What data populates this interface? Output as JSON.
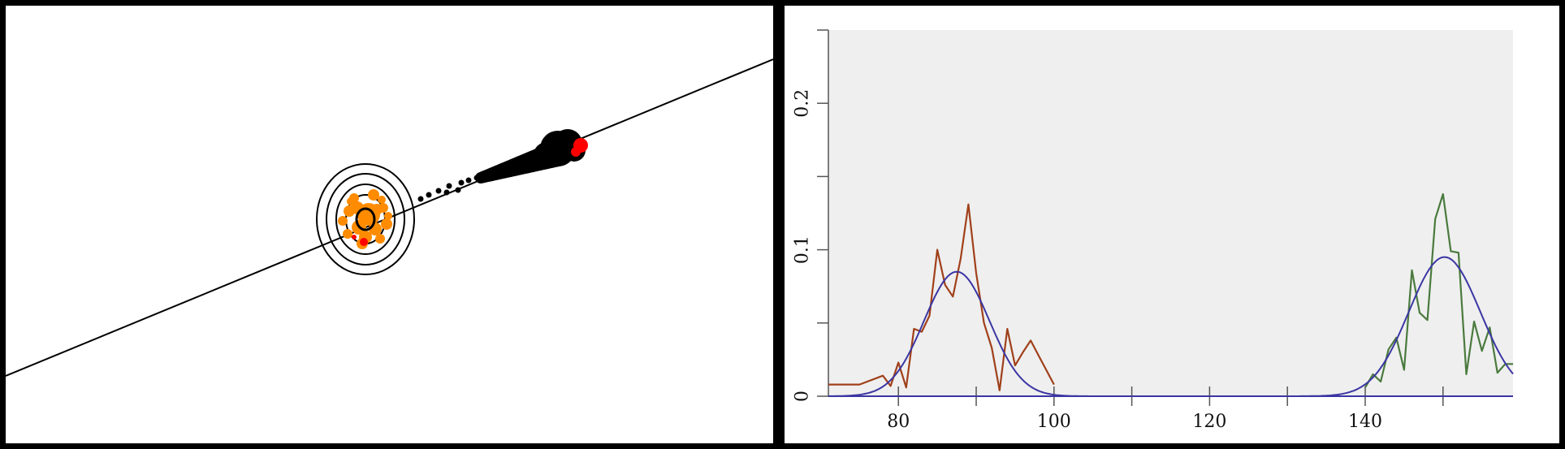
{
  "chart_data": [
    {
      "type": "scatter",
      "title": "",
      "xlabel": "",
      "ylabel": "",
      "grid": false,
      "elements": {
        "line": "black line",
        "target_circles": 4,
        "cluster_color": "#ff8c00",
        "trail_color": "#000000",
        "highlight_color": "#ff0000"
      }
    },
    {
      "type": "line",
      "title": "",
      "xlabel": "",
      "ylabel": "",
      "xlim": [
        71,
        159
      ],
      "ylim": [
        0,
        0.25
      ],
      "x_ticks": [
        80,
        100,
        120,
        140
      ],
      "x_minor_ticks": [
        90,
        110,
        130,
        150
      ],
      "y_ticks": [
        0,
        0.1,
        0.2
      ],
      "y_tick_labels": [
        "0",
        "0.1",
        "0.2"
      ],
      "y_minor_ticks": [
        0.05,
        0.15,
        0.25
      ],
      "background": "#efefef",
      "grid": false,
      "series": [
        {
          "color": "#a0401a",
          "x": [
            71,
            75,
            78,
            79,
            80,
            81,
            82,
            83,
            84,
            85,
            86,
            87,
            88,
            89,
            90,
            91,
            92,
            93,
            94,
            95,
            96,
            97,
            98,
            99,
            100
          ],
          "y": [
            0.008,
            0.008,
            0.014,
            0.007,
            0.023,
            0.006,
            0.046,
            0.044,
            0.055,
            0.1,
            0.076,
            0.068,
            0.094,
            0.131,
            0.084,
            0.05,
            0.033,
            0.004,
            0.046,
            0.021,
            0.03,
            0.038,
            0.028,
            0.018,
            0.008
          ]
        },
        {
          "color": "#4a7a3e",
          "x": [
            140,
            141,
            142,
            143,
            144,
            145,
            146,
            147,
            148,
            149,
            150,
            151,
            152,
            153,
            154,
            155,
            156,
            157,
            158,
            159
          ],
          "y": [
            0.006,
            0.015,
            0.01,
            0.032,
            0.04,
            0.018,
            0.086,
            0.057,
            0.052,
            0.121,
            0.138,
            0.099,
            0.098,
            0.015,
            0.051,
            0.031,
            0.047,
            0.016,
            0.022,
            0.022
          ]
        },
        {
          "color": "#3b36a3",
          "kind": "fit",
          "mean": 87.5,
          "sd": 4.2,
          "peak": 0.085,
          "range": [
            71,
            159
          ]
        },
        {
          "color": "#3b36a3",
          "kind": "fit",
          "mean": 150.2,
          "sd": 4.6,
          "peak": 0.095,
          "range": [
            71,
            159
          ]
        }
      ]
    }
  ]
}
